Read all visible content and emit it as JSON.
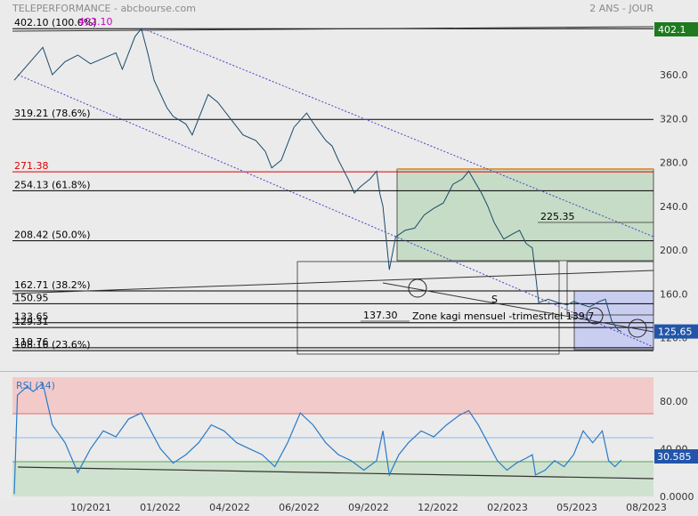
{
  "header": {
    "title": "TELEPERFORMANCE - abcbourse.com",
    "period": "2 ANS - JOUR"
  },
  "chart_data": [
    {
      "type": "line",
      "name": "price",
      "title": "",
      "ylim": [
        105,
        412
      ],
      "yticks": [
        360.0,
        320.0,
        280.0,
        240.0,
        200.0,
        160.0,
        120.0
      ],
      "ytick_labels": [
        "360.0",
        "320.0",
        "280.0",
        "240.0",
        "200.0",
        "160.0",
        "120.0"
      ],
      "xticks": [
        "10/2021",
        "01/2022",
        "04/2022",
        "06/2022",
        "09/2022",
        "12/2022",
        "02/2023",
        "05/2023",
        "08/2023"
      ],
      "last_value": "402.1",
      "last_badge": "402.1",
      "current_badge": "125.65",
      "current_value": 125.65,
      "series_points": [
        [
          0.0,
          355
        ],
        [
          0.03,
          375
        ],
        [
          0.045,
          385
        ],
        [
          0.06,
          360
        ],
        [
          0.08,
          372
        ],
        [
          0.1,
          378
        ],
        [
          0.12,
          370
        ],
        [
          0.14,
          375
        ],
        [
          0.16,
          380
        ],
        [
          0.17,
          365
        ],
        [
          0.19,
          395
        ],
        [
          0.2,
          402
        ],
        [
          0.21,
          380
        ],
        [
          0.22,
          355
        ],
        [
          0.24,
          330
        ],
        [
          0.25,
          322
        ],
        [
          0.27,
          315
        ],
        [
          0.28,
          305
        ],
        [
          0.29,
          320
        ],
        [
          0.305,
          342
        ],
        [
          0.32,
          335
        ],
        [
          0.34,
          320
        ],
        [
          0.36,
          305
        ],
        [
          0.38,
          300
        ],
        [
          0.395,
          290
        ],
        [
          0.405,
          275
        ],
        [
          0.42,
          282
        ],
        [
          0.44,
          312
        ],
        [
          0.46,
          325
        ],
        [
          0.475,
          312
        ],
        [
          0.49,
          300
        ],
        [
          0.5,
          295
        ],
        [
          0.51,
          282
        ],
        [
          0.525,
          265
        ],
        [
          0.535,
          252
        ],
        [
          0.545,
          258
        ],
        [
          0.56,
          265
        ],
        [
          0.57,
          272
        ],
        [
          0.575,
          252
        ],
        [
          0.58,
          240
        ],
        [
          0.59,
          182
        ],
        [
          0.6,
          212
        ],
        [
          0.615,
          218
        ],
        [
          0.63,
          220
        ],
        [
          0.645,
          232
        ],
        [
          0.66,
          238
        ],
        [
          0.675,
          243
        ],
        [
          0.69,
          260
        ],
        [
          0.705,
          265
        ],
        [
          0.715,
          272
        ],
        [
          0.725,
          262
        ],
        [
          0.735,
          252
        ],
        [
          0.745,
          240
        ],
        [
          0.755,
          225
        ],
        [
          0.77,
          210
        ],
        [
          0.785,
          215
        ],
        [
          0.795,
          218
        ],
        [
          0.805,
          206
        ],
        [
          0.815,
          202
        ],
        [
          0.82,
          178
        ],
        [
          0.825,
          152
        ],
        [
          0.84,
          155
        ],
        [
          0.855,
          152
        ],
        [
          0.87,
          150
        ],
        [
          0.88,
          153
        ],
        [
          0.895,
          150
        ],
        [
          0.905,
          148
        ],
        [
          0.92,
          153
        ],
        [
          0.93,
          155
        ],
        [
          0.94,
          135
        ],
        [
          0.95,
          127
        ],
        [
          0.955,
          125.65
        ]
      ],
      "levels": [
        {
          "price": 402.1,
          "label": "402.10",
          "pct": "(100.0%)",
          "color": "#000000"
        },
        {
          "price": 319.21,
          "label": "319.21",
          "pct": "(78.6%)",
          "color": "#000000"
        },
        {
          "price": 271.38,
          "label": "271.38",
          "pct": "",
          "color": "#dd0000"
        },
        {
          "price": 254.13,
          "label": "254.13",
          "pct": "(61.8%)",
          "color": "#000000"
        },
        {
          "price": 208.42,
          "label": "208.42",
          "pct": "(50.0%)",
          "color": "#000000"
        },
        {
          "price": 162.71,
          "label": "162.71",
          "pct": "(38.2%)",
          "color": "#000000"
        },
        {
          "price": 150.95,
          "label": "150.95",
          "pct": "",
          "color": "#000000"
        },
        {
          "price": 133.65,
          "label": "133.65",
          "pct": "",
          "color": "#000000"
        },
        {
          "price": 129.31,
          "label": "129.31",
          "pct": "",
          "color": "#000000"
        },
        {
          "price": 110.76,
          "label": "110.76",
          "pct": "",
          "color": "#000000"
        },
        {
          "price": 108.16,
          "label": "108.16",
          "pct": "(23.6%)",
          "color": "#000000"
        }
      ],
      "annotations": [
        {
          "text": "225.35",
          "color": "#000000"
        },
        {
          "text": "137.30",
          "color": "#000000"
        },
        {
          "text": "S",
          "color": "#000000"
        },
        {
          "text": "Zone kagi mensuel -trimestriel 139.7",
          "color": "#000000"
        },
        {
          "text": "402.10",
          "color": "#cc00cc"
        }
      ]
    },
    {
      "type": "line",
      "name": "rsi",
      "title": "RSI (14)",
      "ylim": [
        0,
        100
      ],
      "yticks": [
        80.0,
        40.0,
        0.0
      ],
      "ytick_labels": [
        "80.00",
        "40.00",
        "0.0000"
      ],
      "current_badge": "30.585",
      "current_value": 30.585,
      "overbought": 70,
      "oversold": 30,
      "series_points": [
        [
          0.0,
          2
        ],
        [
          0.005,
          85
        ],
        [
          0.02,
          92
        ],
        [
          0.03,
          88
        ],
        [
          0.045,
          95
        ],
        [
          0.06,
          60
        ],
        [
          0.08,
          45
        ],
        [
          0.1,
          20
        ],
        [
          0.12,
          40
        ],
        [
          0.14,
          55
        ],
        [
          0.16,
          50
        ],
        [
          0.18,
          65
        ],
        [
          0.2,
          70
        ],
        [
          0.215,
          55
        ],
        [
          0.23,
          40
        ],
        [
          0.25,
          28
        ],
        [
          0.27,
          35
        ],
        [
          0.29,
          45
        ],
        [
          0.31,
          60
        ],
        [
          0.33,
          55
        ],
        [
          0.35,
          45
        ],
        [
          0.37,
          40
        ],
        [
          0.39,
          35
        ],
        [
          0.41,
          25
        ],
        [
          0.43,
          45
        ],
        [
          0.45,
          70
        ],
        [
          0.47,
          60
        ],
        [
          0.49,
          45
        ],
        [
          0.51,
          35
        ],
        [
          0.53,
          30
        ],
        [
          0.55,
          22
        ],
        [
          0.57,
          30
        ],
        [
          0.58,
          55
        ],
        [
          0.59,
          18
        ],
        [
          0.605,
          35
        ],
        [
          0.62,
          45
        ],
        [
          0.64,
          55
        ],
        [
          0.66,
          50
        ],
        [
          0.68,
          60
        ],
        [
          0.7,
          68
        ],
        [
          0.715,
          72
        ],
        [
          0.73,
          60
        ],
        [
          0.745,
          45
        ],
        [
          0.76,
          30
        ],
        [
          0.775,
          22
        ],
        [
          0.79,
          28
        ],
        [
          0.805,
          32
        ],
        [
          0.815,
          35
        ],
        [
          0.82,
          18
        ],
        [
          0.835,
          22
        ],
        [
          0.85,
          30
        ],
        [
          0.865,
          25
        ],
        [
          0.88,
          35
        ],
        [
          0.895,
          55
        ],
        [
          0.91,
          45
        ],
        [
          0.925,
          55
        ],
        [
          0.935,
          30
        ],
        [
          0.945,
          25
        ],
        [
          0.955,
          30.585
        ]
      ]
    }
  ],
  "colors": {
    "price_line": "#1a4a6a",
    "green_zone": "#c6dcc6",
    "blue_zone": "#c9cdf0",
    "rsi_line": "#2a7ac8",
    "rsi_overbought": "#f2caca",
    "rsi_oversold": "#cfe2cf",
    "badge_green": "#1f7a1f",
    "badge_blue": "#2255aa"
  }
}
